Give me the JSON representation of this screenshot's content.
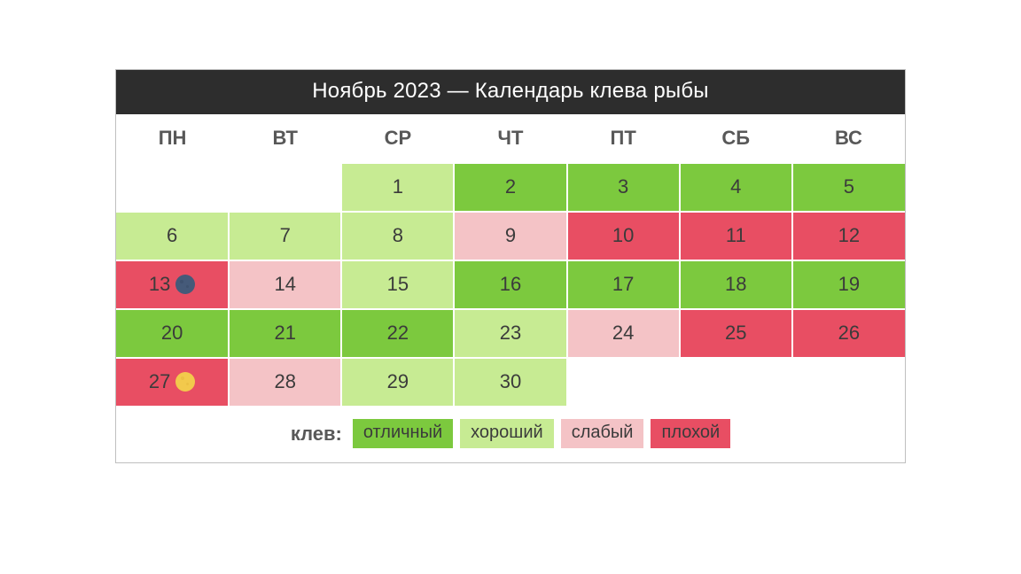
{
  "calendar": {
    "title": "Ноябрь 2023 — Календарь клева рыбы",
    "weekday_headers": [
      "ПН",
      "ВТ",
      "СР",
      "ЧТ",
      "ПТ",
      "СБ",
      "ВС"
    ],
    "header_text_color": "#585858",
    "title_bg": "#2d2d2d",
    "title_text_color": "#ffffff",
    "cell_text_color": "#3b3b3b",
    "colors": {
      "excellent": "#7cc93e",
      "good": "#c7eb93",
      "weak": "#f4c3c6",
      "bad": "#e84e63",
      "empty": "#ffffff"
    },
    "moon_colors": {
      "new": "#455a79",
      "full": "#f2c94c"
    },
    "weeks": [
      [
        {
          "day": null,
          "status": "empty"
        },
        {
          "day": null,
          "status": "empty"
        },
        {
          "day": 1,
          "status": "good"
        },
        {
          "day": 2,
          "status": "excellent"
        },
        {
          "day": 3,
          "status": "excellent"
        },
        {
          "day": 4,
          "status": "excellent"
        },
        {
          "day": 5,
          "status": "excellent"
        }
      ],
      [
        {
          "day": 6,
          "status": "good"
        },
        {
          "day": 7,
          "status": "good"
        },
        {
          "day": 8,
          "status": "good"
        },
        {
          "day": 9,
          "status": "weak"
        },
        {
          "day": 10,
          "status": "bad"
        },
        {
          "day": 11,
          "status": "bad"
        },
        {
          "day": 12,
          "status": "bad"
        }
      ],
      [
        {
          "day": 13,
          "status": "bad",
          "moon": "new"
        },
        {
          "day": 14,
          "status": "weak"
        },
        {
          "day": 15,
          "status": "good"
        },
        {
          "day": 16,
          "status": "excellent"
        },
        {
          "day": 17,
          "status": "excellent"
        },
        {
          "day": 18,
          "status": "excellent"
        },
        {
          "day": 19,
          "status": "excellent"
        }
      ],
      [
        {
          "day": 20,
          "status": "excellent"
        },
        {
          "day": 21,
          "status": "excellent"
        },
        {
          "day": 22,
          "status": "excellent"
        },
        {
          "day": 23,
          "status": "good"
        },
        {
          "day": 24,
          "status": "weak"
        },
        {
          "day": 25,
          "status": "bad"
        },
        {
          "day": 26,
          "status": "bad"
        }
      ],
      [
        {
          "day": 27,
          "status": "bad",
          "moon": "full"
        },
        {
          "day": 28,
          "status": "weak"
        },
        {
          "day": 29,
          "status": "good"
        },
        {
          "day": 30,
          "status": "good"
        },
        {
          "day": null,
          "status": "empty"
        },
        {
          "day": null,
          "status": "empty"
        },
        {
          "day": null,
          "status": "empty"
        }
      ]
    ],
    "legend": {
      "label": "клев:",
      "items": [
        {
          "key": "excellent",
          "text": "отличный"
        },
        {
          "key": "good",
          "text": "хороший"
        },
        {
          "key": "weak",
          "text": "слабый"
        },
        {
          "key": "bad",
          "text": "плохой"
        }
      ]
    }
  }
}
